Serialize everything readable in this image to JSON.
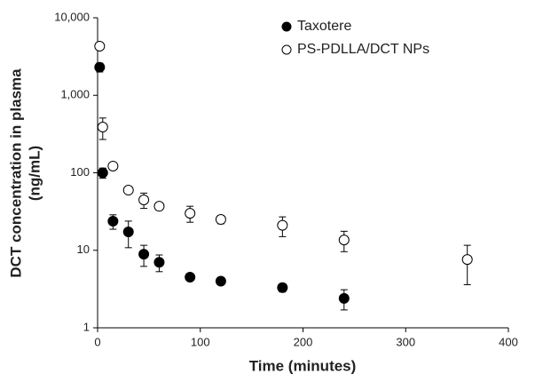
{
  "chart_data": {
    "type": "scatter",
    "xlabel": "Time (minutes)",
    "ylabel": [
      "DCT concentration in plasma",
      "(ng/mL)"
    ],
    "xlim": [
      0,
      400
    ],
    "xticks": [
      0,
      100,
      200,
      300,
      400
    ],
    "ylim": [
      1,
      10000
    ],
    "yscale": "log",
    "yticks": [
      1,
      10,
      100,
      {
        "value": 1000,
        "label": "1,000"
      },
      {
        "value": 10000,
        "label": "10,000"
      }
    ],
    "legend": "upper right",
    "series": [
      {
        "name": "Taxotere",
        "color": "#000000",
        "marker_fill": "#000000",
        "x": [
          2,
          5,
          15,
          30,
          45,
          60,
          90,
          120,
          180,
          240
        ],
        "values": [
          2300,
          100,
          23.7,
          17.3,
          8.9,
          7.0,
          4.5,
          4.0,
          3.3,
          2.4
        ],
        "errors": [
          300,
          15,
          5,
          6.5,
          2.7,
          1.7,
          0.4,
          0.4,
          0.4,
          0.7
        ]
      },
      {
        "name": "PS-PDLLA/DCT NPs",
        "color": "#000000",
        "marker_fill": "#ffffff",
        "x": [
          2,
          5,
          15,
          30,
          45,
          60,
          90,
          120,
          180,
          240,
          360
        ],
        "values": [
          4300,
          389,
          122,
          59.7,
          44.7,
          37,
          30,
          25,
          21,
          13.6,
          7.6
        ],
        "errors": [
          300,
          120,
          8,
          4,
          10,
          4,
          7,
          3,
          6,
          4,
          4
        ]
      }
    ]
  }
}
